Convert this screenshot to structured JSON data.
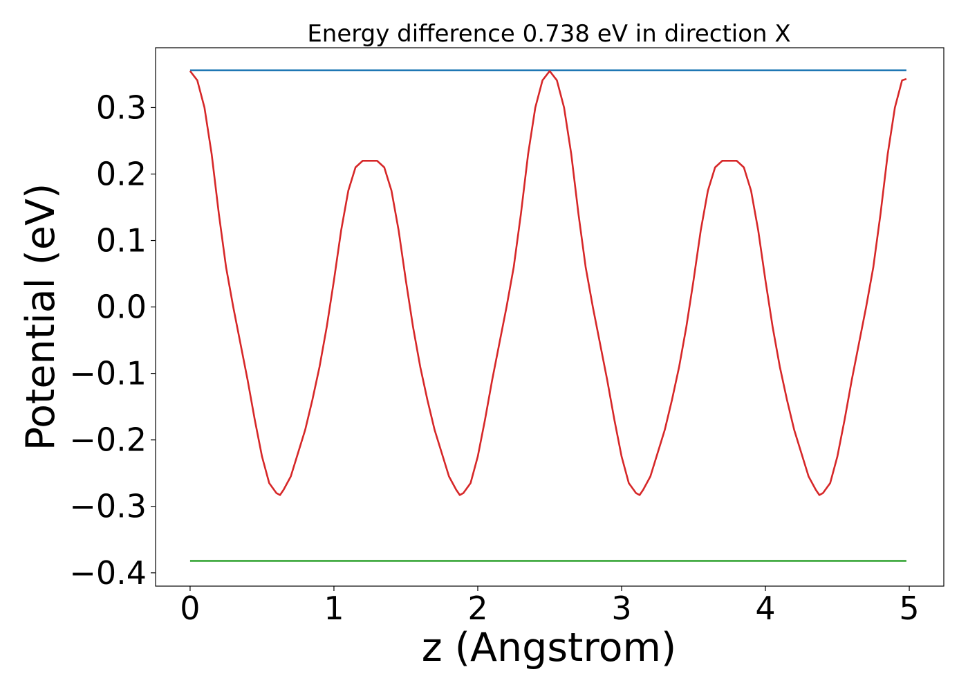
{
  "chart_data": {
    "type": "line",
    "title": "Energy difference 0.738 eV in direction X",
    "xlabel": "z (Angstrom)",
    "ylabel": "Potential (eV)",
    "xlim": [
      -0.24,
      5.24
    ],
    "ylim": [
      -0.42,
      0.39
    ],
    "xticks": [
      0,
      1,
      2,
      3,
      4,
      5
    ],
    "xtick_labels": [
      "0",
      "1",
      "2",
      "3",
      "4",
      "5"
    ],
    "yticks": [
      0.3,
      0.2,
      0.1,
      0.0,
      -0.1,
      -0.2,
      -0.3,
      -0.4
    ],
    "ytick_labels": [
      "0.3",
      "0.2",
      "0.1",
      "0.0",
      "−0.1",
      "−0.2",
      "−0.3",
      "−0.4"
    ],
    "grid": false,
    "legend": "none",
    "series": [
      {
        "color": "#1f77b4",
        "x": [
          0,
          4.98
        ],
        "y": [
          0.356,
          0.356
        ]
      },
      {
        "color": "#2ca02c",
        "x": [
          0,
          4.98
        ],
        "y": [
          -0.382,
          -0.382
        ]
      },
      {
        "color": "#d62728",
        "x": [
          0,
          0.05,
          0.1,
          0.15,
          0.2,
          0.25,
          0.3,
          0.35,
          0.4,
          0.45,
          0.5,
          0.55,
          0.6,
          0.625,
          0.65,
          0.7,
          0.75,
          0.8,
          0.85,
          0.9,
          0.95,
          1.0,
          1.05,
          1.1,
          1.15,
          1.2,
          1.25,
          1.3,
          1.35,
          1.4,
          1.45,
          1.5,
          1.55,
          1.6,
          1.65,
          1.7,
          1.75,
          1.8,
          1.85,
          1.875,
          1.9,
          1.95,
          2.0,
          2.05,
          2.1,
          2.15,
          2.2,
          2.25,
          2.3,
          2.35,
          2.4,
          2.45,
          2.5,
          2.55,
          2.6,
          2.65,
          2.7,
          2.75,
          2.8,
          2.85,
          2.9,
          2.95,
          3.0,
          3.05,
          3.1,
          3.125,
          3.15,
          3.2,
          3.25,
          3.3,
          3.35,
          3.4,
          3.45,
          3.5,
          3.55,
          3.6,
          3.65,
          3.7,
          3.75,
          3.8,
          3.85,
          3.9,
          3.95,
          4.0,
          4.05,
          4.1,
          4.15,
          4.2,
          4.25,
          4.3,
          4.35,
          4.375,
          4.4,
          4.45,
          4.5,
          4.55,
          4.6,
          4.65,
          4.7,
          4.75,
          4.8,
          4.85,
          4.9,
          4.95,
          4.98
        ],
        "y": [
          0.355,
          0.341,
          0.3,
          0.23,
          0.14,
          0.06,
          0.0,
          -0.055,
          -0.11,
          -0.17,
          -0.225,
          -0.265,
          -0.28,
          -0.283,
          -0.275,
          -0.255,
          -0.22,
          -0.185,
          -0.14,
          -0.09,
          -0.03,
          0.04,
          0.115,
          0.175,
          0.21,
          0.22,
          0.22,
          0.22,
          0.21,
          0.175,
          0.115,
          0.04,
          -0.03,
          -0.09,
          -0.14,
          -0.185,
          -0.22,
          -0.255,
          -0.275,
          -0.283,
          -0.28,
          -0.265,
          -0.225,
          -0.17,
          -0.11,
          -0.055,
          0.0,
          0.06,
          0.14,
          0.23,
          0.3,
          0.341,
          0.355,
          0.341,
          0.3,
          0.23,
          0.14,
          0.06,
          0.0,
          -0.055,
          -0.11,
          -0.17,
          -0.225,
          -0.265,
          -0.28,
          -0.283,
          -0.275,
          -0.255,
          -0.22,
          -0.185,
          -0.14,
          -0.09,
          -0.03,
          0.04,
          0.115,
          0.175,
          0.21,
          0.22,
          0.22,
          0.22,
          0.21,
          0.175,
          0.115,
          0.04,
          -0.03,
          -0.09,
          -0.14,
          -0.185,
          -0.22,
          -0.255,
          -0.275,
          -0.283,
          -0.28,
          -0.265,
          -0.225,
          -0.17,
          -0.11,
          -0.055,
          0.0,
          0.06,
          0.14,
          0.23,
          0.3,
          0.341,
          0.343
        ]
      }
    ]
  }
}
